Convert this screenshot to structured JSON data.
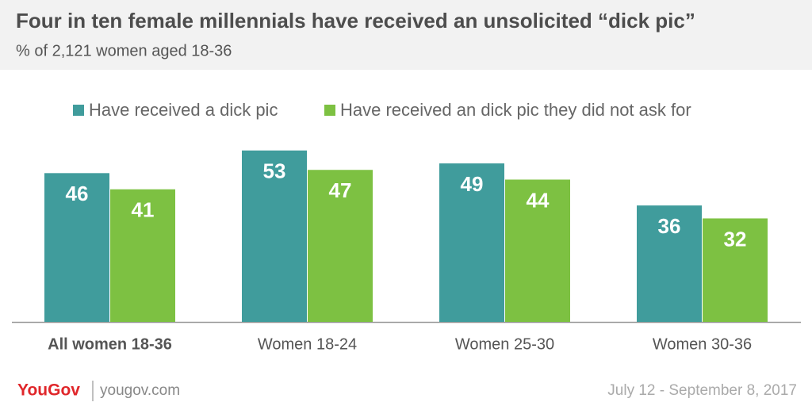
{
  "chart_data": {
    "type": "bar",
    "title": "Four in ten female millennials have received an unsolicited “dick pic”",
    "subtitle": "% of 2,121 women aged 18-36",
    "categories": [
      "All women 18-36",
      "Women 18-24",
      "Women 25-30",
      "Women 30-36"
    ],
    "series": [
      {
        "name": "Have received a dick pic",
        "color": "#409c9c",
        "values": [
          46,
          53,
          49,
          36
        ]
      },
      {
        "name": "Have received an dick pic they did not ask for",
        "color": "#7dc142",
        "values": [
          41,
          47,
          44,
          32
        ]
      }
    ],
    "legend": "top",
    "footer": {
      "logo": "YouGov",
      "site": "yougov.com",
      "date": "July 12 - September 8, 2017"
    }
  }
}
